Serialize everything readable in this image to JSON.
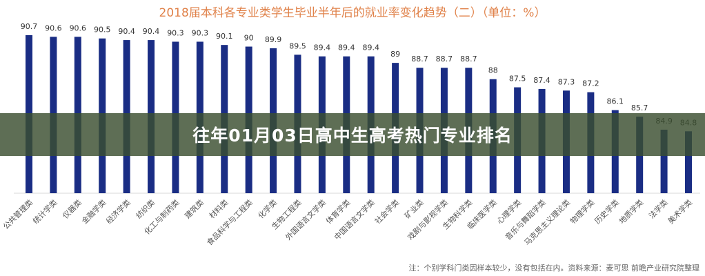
{
  "chart_data": {
    "type": "bar",
    "title": "2018届本科各专业类学生毕业半年后的就业率变化趋势（二）（单位：%）",
    "categories": [
      "公共管理类",
      "统计学类",
      "仪器类",
      "金融学类",
      "经济学类",
      "纺织类",
      "化工与制药类",
      "建筑类",
      "材料类",
      "食品科学与工程类",
      "化学类",
      "生物工程类",
      "外国语言文学类",
      "体育学类",
      "中国语言文学类",
      "社会学类",
      "矿业类",
      "戏剧与影视学类",
      "生物科学类",
      "临床医学类",
      "心理学类",
      "音乐与舞蹈学类",
      "马克思主义理论类",
      "物理学类",
      "历史学类",
      "地质学类",
      "法学类",
      "美术学类"
    ],
    "values": [
      90.7,
      90.6,
      90.6,
      90.5,
      90.4,
      90.4,
      90.3,
      90.3,
      90.1,
      90,
      89.9,
      89.5,
      89.4,
      89.4,
      89.4,
      89,
      88.7,
      88.7,
      88.7,
      88,
      87.5,
      87.4,
      87.3,
      87.2,
      86.1,
      85.7,
      84.9,
      84.8
    ],
    "ylim": [
      81,
      91
    ],
    "grid": false,
    "bar_color": "#1a2d84",
    "title_color": "#e0824a"
  },
  "note": "注：个别学科门类因样本较少，没有包括在内。资料来源：麦可思 前瞻产业研究院整理",
  "banner": {
    "text": "往年01月03日高中生高考热门专业排名"
  }
}
